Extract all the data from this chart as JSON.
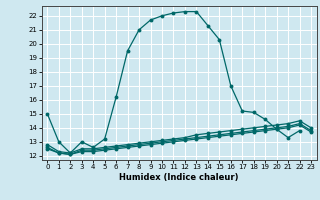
{
  "xlabel": "Humidex (Indice chaleur)",
  "bg_color": "#cfe8f0",
  "grid_color": "#ffffff",
  "line_color": "#006868",
  "xlim": [
    -0.5,
    23.5
  ],
  "ylim": [
    11.7,
    22.7
  ],
  "yticks": [
    12,
    13,
    14,
    15,
    16,
    17,
    18,
    19,
    20,
    21,
    22
  ],
  "xticks": [
    0,
    1,
    2,
    3,
    4,
    5,
    6,
    7,
    8,
    9,
    10,
    11,
    12,
    13,
    14,
    15,
    16,
    17,
    18,
    19,
    20,
    21,
    22,
    23
  ],
  "curve1_x": [
    0,
    1,
    2,
    3,
    4,
    5,
    6,
    7,
    8,
    9,
    10,
    11,
    12,
    13,
    14,
    15,
    16,
    17,
    18,
    19,
    20,
    21,
    22
  ],
  "curve1_y": [
    15.0,
    13.0,
    12.2,
    13.0,
    12.6,
    13.2,
    16.2,
    19.5,
    21.0,
    21.7,
    22.0,
    22.2,
    22.3,
    22.3,
    21.3,
    20.3,
    17.0,
    15.2,
    15.1,
    14.6,
    13.9,
    13.3,
    13.8
  ],
  "curve2_x": [
    0,
    1,
    2,
    3,
    4,
    5,
    6,
    7,
    8,
    9,
    10,
    11,
    12,
    13,
    14,
    15,
    16,
    17,
    18,
    19,
    20,
    21,
    22,
    23
  ],
  "curve2_y": [
    12.8,
    12.3,
    12.2,
    12.5,
    12.5,
    12.6,
    12.7,
    12.8,
    12.9,
    13.0,
    13.1,
    13.2,
    13.3,
    13.5,
    13.6,
    13.7,
    13.8,
    13.9,
    14.0,
    14.1,
    14.2,
    14.3,
    14.5,
    14.0
  ],
  "curve3_x": [
    0,
    1,
    2,
    3,
    4,
    5,
    6,
    7,
    8,
    9,
    10,
    11,
    12,
    13,
    14,
    15,
    16,
    17,
    18,
    19,
    20,
    21,
    22,
    23
  ],
  "curve3_y": [
    12.6,
    12.2,
    12.1,
    12.4,
    12.4,
    12.5,
    12.6,
    12.7,
    12.8,
    12.9,
    13.0,
    13.1,
    13.2,
    13.3,
    13.4,
    13.5,
    13.6,
    13.7,
    13.8,
    13.9,
    14.0,
    14.1,
    14.3,
    13.8
  ],
  "curve4_x": [
    0,
    1,
    2,
    3,
    4,
    5,
    6,
    7,
    8,
    9,
    10,
    11,
    12,
    13,
    14,
    15,
    16,
    17,
    18,
    19,
    20,
    21,
    22,
    23
  ],
  "curve4_y": [
    12.5,
    12.2,
    12.1,
    12.3,
    12.3,
    12.4,
    12.5,
    12.6,
    12.7,
    12.8,
    12.9,
    13.0,
    13.1,
    13.2,
    13.3,
    13.4,
    13.5,
    13.6,
    13.7,
    13.8,
    13.9,
    14.0,
    14.2,
    13.7
  ]
}
